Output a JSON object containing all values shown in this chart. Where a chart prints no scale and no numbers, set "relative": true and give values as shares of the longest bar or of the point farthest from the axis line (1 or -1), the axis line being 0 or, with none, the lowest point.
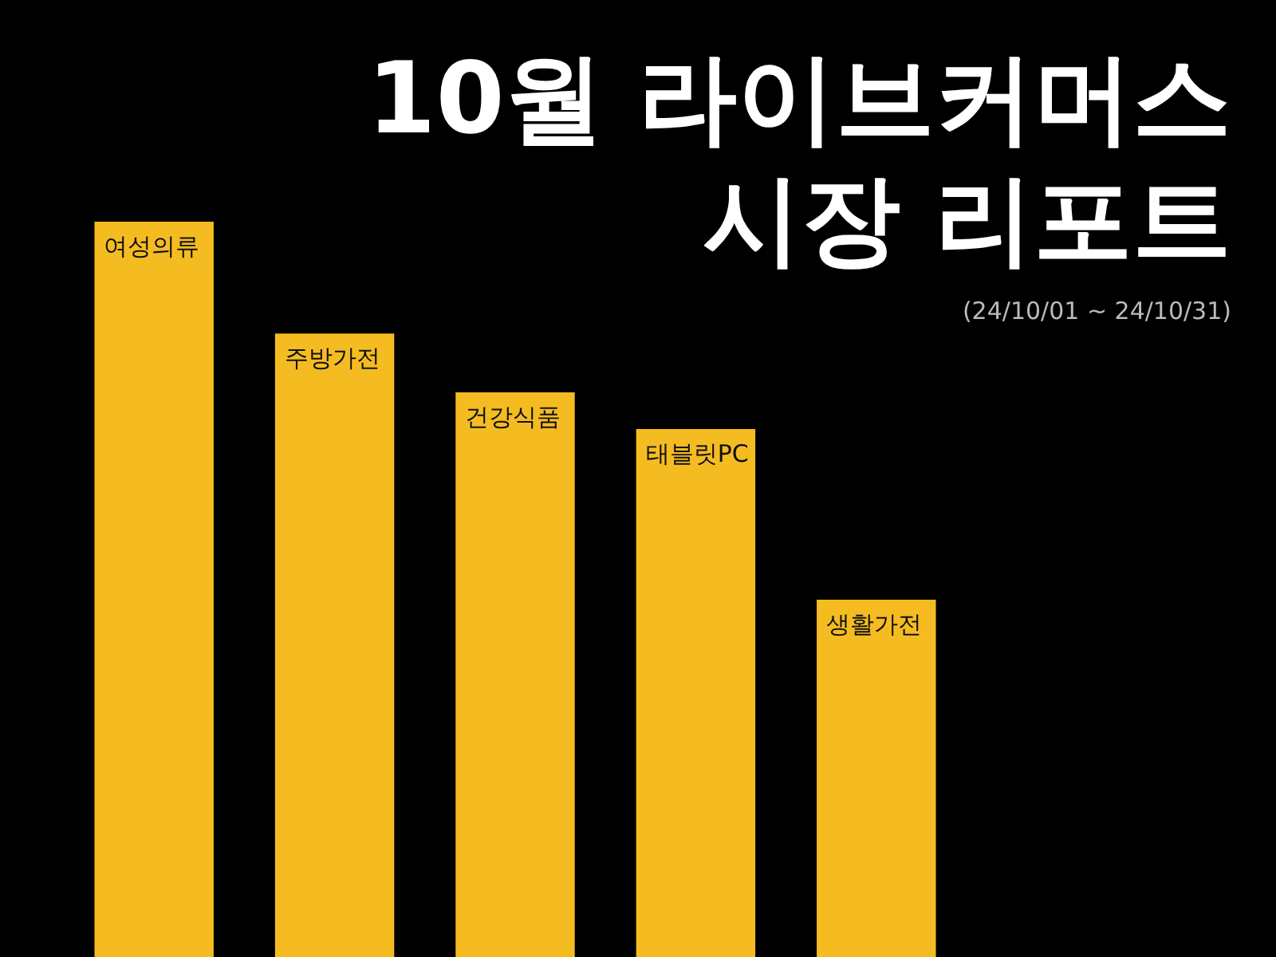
{
  "chart_data": {
    "type": "bar",
    "title": "10월 라이브커머스 시장 리포트",
    "subtitle": "(24/10/01 ~ 24/10/31)",
    "categories": [
      "여성의류",
      "주방가전",
      "건강식품",
      "태블릿PC",
      "생활가전"
    ],
    "values": [
      1,
      0.848,
      0.768,
      0.718,
      0.486
    ],
    "color": "#f5bc22",
    "relative": true,
    "grid": false,
    "legend": false
  }
}
